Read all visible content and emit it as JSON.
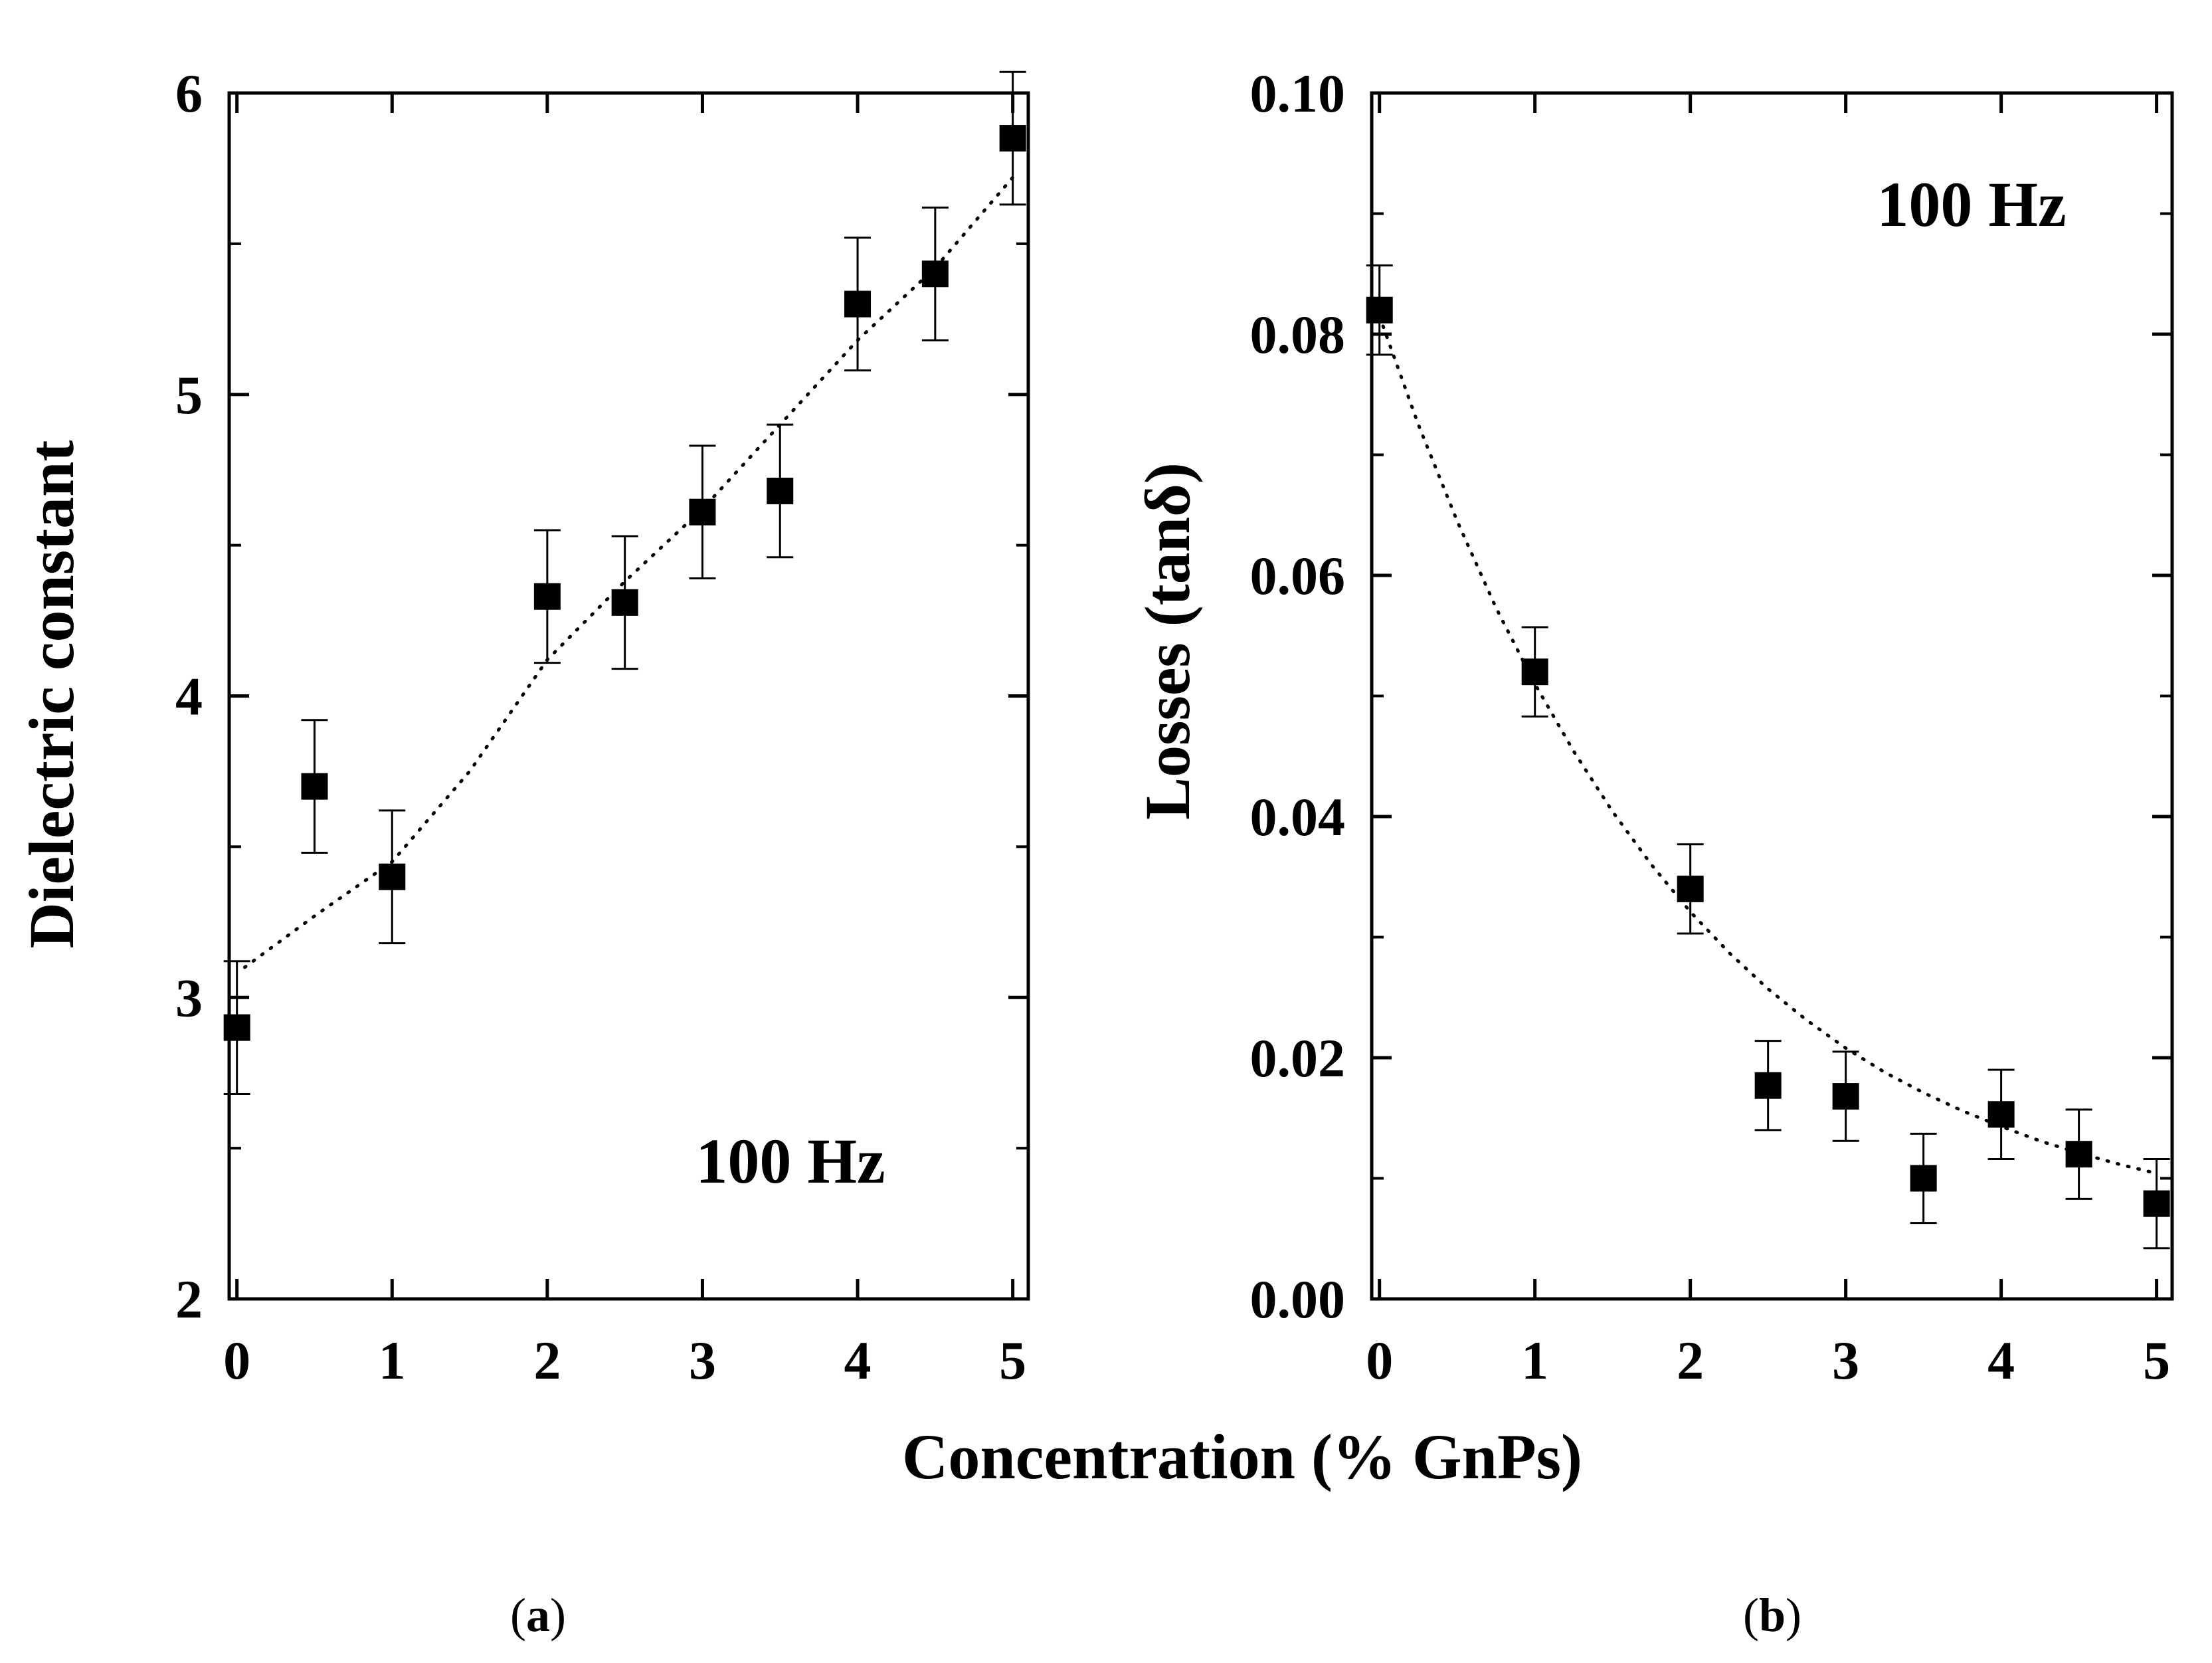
{
  "figure": {
    "shared_xlabel": "Concentration (% GnPs)",
    "captions": [
      {
        "open": "(",
        "letter": "a",
        "close": ")"
      },
      {
        "open": "(",
        "letter": "b",
        "close": ")"
      }
    ]
  },
  "chart_data": [
    {
      "type": "scatter",
      "panel": "a",
      "xlabel": "Concentration (% GnPs)",
      "ylabel": "Dielectric constant",
      "annotation": "100 Hz",
      "xlim": [
        -0.05,
        5.1
      ],
      "ylim": [
        2,
        6
      ],
      "xticks": [
        0,
        1,
        2,
        3,
        4,
        5
      ],
      "xtick_labels": [
        "0",
        "1",
        "2",
        "3",
        "4",
        "5"
      ],
      "yticks": [
        2,
        3,
        4,
        5,
        6
      ],
      "ytick_labels": [
        "2",
        "3",
        "4",
        "5",
        "6"
      ],
      "minor_yticks": [
        2.5,
        3.5,
        4.5,
        5.5
      ],
      "grid": false,
      "series": [
        {
          "name": "Dielectric constant",
          "marker": "filled-square",
          "x": [
            0,
            0.5,
            1,
            2,
            2.5,
            3,
            3.5,
            4,
            4.5,
            5
          ],
          "y": [
            2.9,
            3.7,
            3.4,
            4.33,
            4.31,
            4.61,
            4.68,
            5.3,
            5.4,
            5.85
          ],
          "err": [
            0.22,
            0.22,
            0.22,
            0.22,
            0.22,
            0.22,
            0.22,
            0.22,
            0.22,
            0.22
          ]
        }
      ],
      "fit": {
        "style": "dotted",
        "x": [
          0.05,
          0.5,
          1,
          1.5,
          2,
          2.5,
          3,
          3.5,
          4,
          4.5,
          5
        ],
        "y": [
          3.1,
          3.27,
          3.45,
          3.75,
          4.12,
          4.38,
          4.62,
          4.9,
          5.18,
          5.42,
          5.72
        ]
      }
    },
    {
      "type": "scatter",
      "panel": "b",
      "xlabel": "Concentration (% GnPs)",
      "ylabel": "Losses (tanδ)",
      "annotation": "100 Hz",
      "xlim": [
        -0.05,
        5.1
      ],
      "ylim": [
        0.0,
        0.1
      ],
      "xticks": [
        0,
        1,
        2,
        3,
        4,
        5
      ],
      "xtick_labels": [
        "0",
        "1",
        "2",
        "3",
        "4",
        "5"
      ],
      "yticks": [
        0.0,
        0.02,
        0.04,
        0.06,
        0.08,
        0.1
      ],
      "ytick_labels": [
        "0.00",
        "0.02",
        "0.04",
        "0.06",
        "0.08",
        "0.10"
      ],
      "minor_yticks": [
        0.01,
        0.03,
        0.05,
        0.07,
        0.09
      ],
      "grid": false,
      "series": [
        {
          "name": "Losses",
          "marker": "filled-square",
          "x": [
            0,
            1,
            2,
            2.5,
            3,
            3.5,
            4,
            4.5,
            5
          ],
          "y": [
            0.082,
            0.052,
            0.034,
            0.0177,
            0.0168,
            0.01,
            0.0153,
            0.012,
            0.0079
          ],
          "err": [
            0.0037,
            0.0037,
            0.0037,
            0.0037,
            0.0037,
            0.0037,
            0.0037,
            0.0037,
            0.0037
          ]
        }
      ],
      "fit": {
        "style": "dotted",
        "x": [
          0,
          0.25,
          0.5,
          0.75,
          1,
          1.25,
          1.5,
          1.75,
          2,
          2.25,
          2.5,
          2.75,
          3,
          3.25,
          3.5,
          3.75,
          4,
          4.25,
          4.5,
          4.75,
          5
        ],
        "y": [
          0.0815,
          0.0725,
          0.0645,
          0.0573,
          0.051,
          0.0454,
          0.0404,
          0.036,
          0.0321,
          0.0287,
          0.0257,
          0.0231,
          0.0208,
          0.0188,
          0.0171,
          0.0156,
          0.0143,
          0.0131,
          0.0121,
          0.0112,
          0.0104
        ]
      }
    }
  ]
}
